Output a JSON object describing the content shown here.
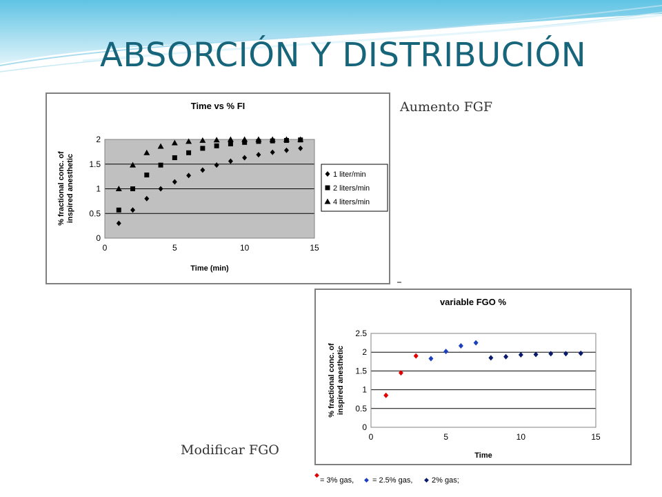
{
  "slide": {
    "title": "ABSORCIÓN Y DISTRIBUCIÓN",
    "caption_top": "Aumento FGF",
    "caption_bottom": "Modificar FGO",
    "theme_color": "#17657a"
  },
  "chart_data": [
    {
      "type": "scatter",
      "title": "Time vs % FI",
      "xlabel": "Time (min)",
      "ylabel_lines": [
        "% fractional conc. of",
        "inspired anesthetic"
      ],
      "xlim": [
        0,
        15
      ],
      "ylim": [
        0,
        2
      ],
      "xticks": [
        0,
        5,
        10,
        15
      ],
      "yticks": [
        0,
        0.5,
        1,
        1.5,
        2
      ],
      "grid": "horizontal",
      "legend": "right",
      "plot_bg": "#c0c0c0",
      "series": [
        {
          "name": "1 liter/min",
          "marker": "diamond",
          "color": "#000000",
          "x": [
            1,
            2,
            3,
            4,
            5,
            6,
            7,
            8,
            9,
            10,
            11,
            12,
            13,
            14
          ],
          "y": [
            0.3,
            0.57,
            0.8,
            1.0,
            1.14,
            1.27,
            1.38,
            1.48,
            1.56,
            1.63,
            1.69,
            1.74,
            1.78,
            1.82
          ]
        },
        {
          "name": "2 liters/min",
          "marker": "square",
          "color": "#000000",
          "x": [
            1,
            2,
            3,
            4,
            5,
            6,
            7,
            8,
            9,
            10,
            11,
            12,
            13,
            14
          ],
          "y": [
            0.57,
            1.0,
            1.28,
            1.48,
            1.63,
            1.73,
            1.82,
            1.87,
            1.91,
            1.94,
            1.96,
            1.97,
            1.98,
            1.99
          ]
        },
        {
          "name": "4 liters/min",
          "marker": "triangle",
          "color": "#000000",
          "x": [
            1,
            2,
            3,
            4,
            5,
            6,
            7,
            8,
            9,
            10,
            11,
            12,
            13,
            14
          ],
          "y": [
            1.0,
            1.48,
            1.73,
            1.86,
            1.93,
            1.96,
            1.98,
            1.99,
            2.0,
            2.0,
            2.0,
            2.0,
            2.0,
            2.0
          ]
        }
      ]
    },
    {
      "type": "scatter",
      "title": "variable FGO %",
      "xlabel": "Time",
      "ylabel_lines": [
        "% fractional conc. of",
        "inspired anesthetic"
      ],
      "xlim": [
        0,
        15
      ],
      "ylim": [
        0,
        2.5
      ],
      "xticks": [
        0,
        5,
        10,
        15
      ],
      "yticks": [
        0,
        0.5,
        1,
        1.5,
        2,
        2.5
      ],
      "grid": "horizontal",
      "plot_bg": "#ffffff",
      "legend_text": [
        "= 3% gas,",
        "= 2.5% gas,",
        "2% gas;"
      ],
      "legend_colors": [
        "#e00000",
        "#1a3fbf",
        "#0a1a6b"
      ],
      "series": [
        {
          "name": "3% gas",
          "marker": "diamond",
          "color": "#e00000",
          "x": [
            1,
            2,
            3
          ],
          "y": [
            0.85,
            1.45,
            1.9
          ]
        },
        {
          "name": "2.5% gas",
          "marker": "diamond",
          "color": "#1a3fbf",
          "x": [
            4,
            5,
            6,
            7
          ],
          "y": [
            1.83,
            2.02,
            2.17,
            2.25
          ]
        },
        {
          "name": "2% gas",
          "marker": "diamond",
          "color": "#0a1a6b",
          "x": [
            8,
            9,
            10,
            11,
            12,
            13,
            14
          ],
          "y": [
            1.85,
            1.88,
            1.93,
            1.94,
            1.96,
            1.96,
            1.97
          ]
        }
      ]
    }
  ]
}
